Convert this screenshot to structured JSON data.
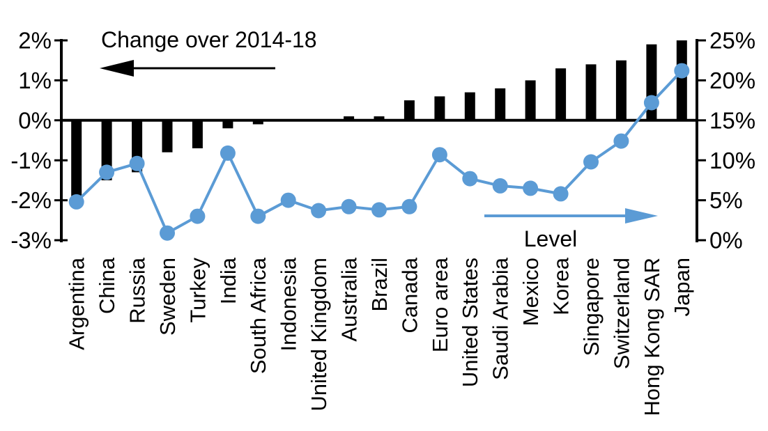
{
  "chart_data": {
    "type": "combo",
    "title": "",
    "categories": [
      "Argentina",
      "China",
      "Russia",
      "Sweden",
      "Turkey",
      "India",
      "South Africa",
      "Indonesia",
      "United Kingdom",
      "Australia",
      "Brazil",
      "Canada",
      "Euro area",
      "United States",
      "Saudi Arabia",
      "Mexico",
      "Korea",
      "Singapore",
      "Switzerland",
      "Hong Kong SAR",
      "Japan"
    ],
    "series": [
      {
        "name": "Change over 2014-18",
        "type": "bar",
        "axis": "left",
        "color": "#000000",
        "values": [
          -1.9,
          -1.5,
          -1.3,
          -0.8,
          -0.7,
          -0.2,
          -0.1,
          0.0,
          0.0,
          0.1,
          0.1,
          0.5,
          0.6,
          0.7,
          0.8,
          1.0,
          1.3,
          1.4,
          1.5,
          1.9,
          2.0
        ]
      },
      {
        "name": "Level",
        "type": "line",
        "axis": "right",
        "color": "#5B9BD5",
        "values": [
          4.8,
          8.5,
          9.6,
          0.9,
          3.0,
          10.9,
          3.0,
          5.0,
          3.7,
          4.2,
          3.8,
          4.2,
          10.7,
          7.7,
          6.8,
          6.5,
          5.8,
          9.8,
          12.4,
          17.2,
          21.2
        ]
      }
    ],
    "left_axis": {
      "min": -3,
      "max": 2,
      "tick_step": 1,
      "tick_labels": [
        "2%",
        "1%",
        "0%",
        "-1%",
        "-2%",
        "-3%"
      ]
    },
    "right_axis": {
      "min": 0,
      "max": 25,
      "tick_step": 5,
      "tick_labels": [
        "25%",
        "20%",
        "15%",
        "10%",
        "5%",
        "0%"
      ]
    },
    "annotations": [
      {
        "id": "bar-series-annotation",
        "text": "Change over 2014-18",
        "arrow_direction": "left",
        "arrow_color": "#000000"
      },
      {
        "id": "line-series-annotation",
        "text": "Level",
        "arrow_direction": "right",
        "arrow_color": "#5B9BD5"
      }
    ],
    "grid": false,
    "legend_position": "none",
    "background": "#FFFFFF"
  }
}
